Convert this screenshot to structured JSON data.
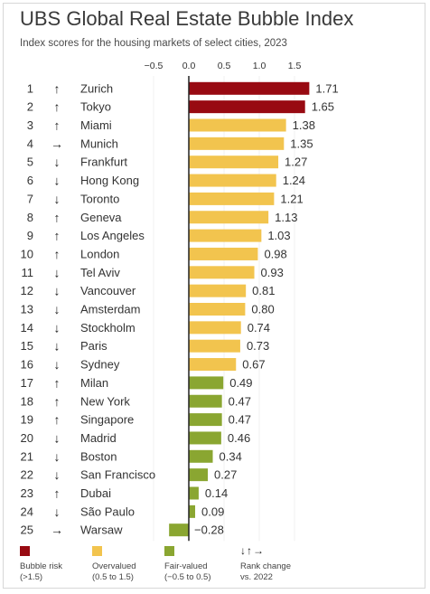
{
  "header": {
    "title": "UBS Global Real Estate Bubble Index",
    "subtitle": "Index scores for the housing markets of select cities, 2023"
  },
  "colors": {
    "bubble": "#980a12",
    "overvalued": "#f2c44e",
    "fair": "#8aa631",
    "axis": "#222222",
    "text": "#333333"
  },
  "arrows": {
    "up": "↑",
    "down": "↓",
    "right": "→"
  },
  "chart_data": {
    "type": "bar",
    "orientation": "horizontal",
    "title": "UBS Global Real Estate Bubble Index",
    "subtitle": "Index scores for the housing markets of select cities, 2023",
    "x_ticks": [
      "−0.5",
      "0.0",
      "0.5",
      "1.0",
      "1.5"
    ],
    "x_tick_values": [
      -0.5,
      0,
      0.5,
      1.0,
      1.5
    ],
    "xlim": [
      -0.5,
      1.75
    ],
    "grid": true,
    "rows": [
      {
        "rank": "1",
        "change": "up",
        "city": "Zurich",
        "value": 1.71,
        "label": "1.71",
        "category": "bubble"
      },
      {
        "rank": "2",
        "change": "up",
        "city": "Tokyo",
        "value": 1.65,
        "label": "1.65",
        "category": "bubble"
      },
      {
        "rank": "3",
        "change": "up",
        "city": "Miami",
        "value": 1.38,
        "label": "1.38",
        "category": "overvalued"
      },
      {
        "rank": "4",
        "change": "right",
        "city": "Munich",
        "value": 1.35,
        "label": "1.35",
        "category": "overvalued"
      },
      {
        "rank": "5",
        "change": "down",
        "city": "Frankfurt",
        "value": 1.27,
        "label": "1.27",
        "category": "overvalued"
      },
      {
        "rank": "6",
        "change": "down",
        "city": "Hong Kong",
        "value": 1.24,
        "label": "1.24",
        "category": "overvalued"
      },
      {
        "rank": "7",
        "change": "down",
        "city": "Toronto",
        "value": 1.21,
        "label": "1.21",
        "category": "overvalued"
      },
      {
        "rank": "8",
        "change": "up",
        "city": "Geneva",
        "value": 1.13,
        "label": "1.13",
        "category": "overvalued"
      },
      {
        "rank": "9",
        "change": "up",
        "city": "Los Angeles",
        "value": 1.03,
        "label": "1.03",
        "category": "overvalued"
      },
      {
        "rank": "10",
        "change": "up",
        "city": "London",
        "value": 0.98,
        "label": "0.98",
        "category": "overvalued"
      },
      {
        "rank": "11",
        "change": "down",
        "city": "Tel Aviv",
        "value": 0.93,
        "label": "0.93",
        "category": "overvalued"
      },
      {
        "rank": "12",
        "change": "down",
        "city": "Vancouver",
        "value": 0.81,
        "label": "0.81",
        "category": "overvalued"
      },
      {
        "rank": "13",
        "change": "down",
        "city": "Amsterdam",
        "value": 0.8,
        "label": "0.80",
        "category": "overvalued"
      },
      {
        "rank": "14",
        "change": "down",
        "city": "Stockholm",
        "value": 0.74,
        "label": "0.74",
        "category": "overvalued"
      },
      {
        "rank": "15",
        "change": "down",
        "city": "Paris",
        "value": 0.73,
        "label": "0.73",
        "category": "overvalued"
      },
      {
        "rank": "16",
        "change": "down",
        "city": "Sydney",
        "value": 0.67,
        "label": "0.67",
        "category": "overvalued"
      },
      {
        "rank": "17",
        "change": "up",
        "city": "Milan",
        "value": 0.49,
        "label": "0.49",
        "category": "fair"
      },
      {
        "rank": "18",
        "change": "up",
        "city": "New York",
        "value": 0.47,
        "label": "0.47",
        "category": "fair"
      },
      {
        "rank": "19",
        "change": "up",
        "city": "Singapore",
        "value": 0.47,
        "label": "0.47",
        "category": "fair"
      },
      {
        "rank": "20",
        "change": "down",
        "city": "Madrid",
        "value": 0.46,
        "label": "0.46",
        "category": "fair"
      },
      {
        "rank": "21",
        "change": "down",
        "city": "Boston",
        "value": 0.34,
        "label": "0.34",
        "category": "fair"
      },
      {
        "rank": "22",
        "change": "down",
        "city": "San Francisco",
        "value": 0.27,
        "label": "0.27",
        "category": "fair"
      },
      {
        "rank": "23",
        "change": "up",
        "city": "Dubai",
        "value": 0.14,
        "label": "0.14",
        "category": "fair"
      },
      {
        "rank": "24",
        "change": "down",
        "city": "São Paulo",
        "value": 0.09,
        "label": "0.09",
        "category": "fair"
      },
      {
        "rank": "25",
        "change": "right",
        "city": "Warsaw",
        "value": -0.28,
        "label": "−0.28",
        "category": "fair"
      }
    ],
    "legend": [
      {
        "category": "bubble",
        "line1": "Bubble risk",
        "line2": "(>1.5)"
      },
      {
        "category": "overvalued",
        "line1": "Overvalued",
        "line2": "(0.5 to 1.5)"
      },
      {
        "category": "fair",
        "line1": "Fair-valued",
        "line2": "(−0.5 to 0.5)"
      }
    ],
    "rank_change_legend": {
      "arrows": "↓↑→",
      "line1": "Rank change",
      "line2": "vs. 2022"
    }
  }
}
